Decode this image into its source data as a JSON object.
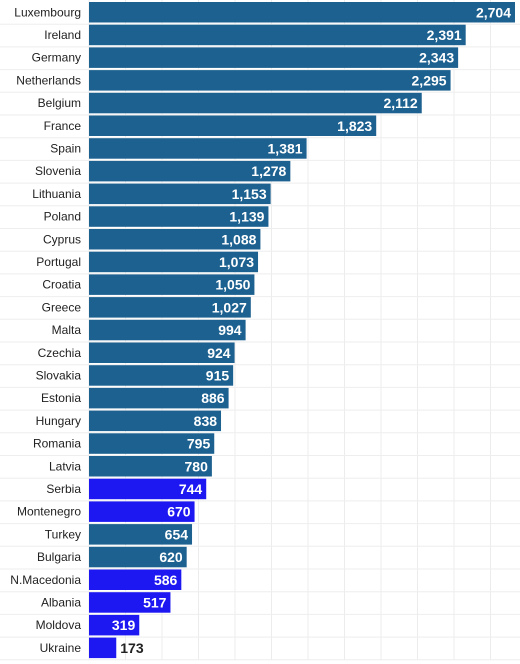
{
  "chart_data": {
    "type": "bar",
    "orientation": "horizontal",
    "categories": [
      "Luxembourg",
      "Ireland",
      "Germany",
      "Netherlands",
      "Belgium",
      "France",
      "Spain",
      "Slovenia",
      "Lithuania",
      "Poland",
      "Cyprus",
      "Portugal",
      "Croatia",
      "Greece",
      "Malta",
      "Czechia",
      "Slovakia",
      "Estonia",
      "Hungary",
      "Romania",
      "Latvia",
      "Serbia",
      "Montenegro",
      "Turkey",
      "Bulgaria",
      "N.Macedonia",
      "Albania",
      "Moldova",
      "Ukraine"
    ],
    "values": [
      2704,
      2391,
      2343,
      2295,
      2112,
      1823,
      1381,
      1278,
      1153,
      1139,
      1088,
      1073,
      1050,
      1027,
      994,
      924,
      915,
      886,
      838,
      795,
      780,
      744,
      670,
      654,
      620,
      586,
      517,
      319,
      173
    ],
    "labels": [
      "2,704",
      "2,391",
      "2,343",
      "2,295",
      "2,112",
      "1,823",
      "1,381",
      "1,278",
      "1,153",
      "1,139",
      "1,088",
      "1,073",
      "1,050",
      "1,027",
      "994",
      "924",
      "915",
      "886",
      "838",
      "795",
      "780",
      "744",
      "670",
      "654",
      "620",
      "586",
      "517",
      "319",
      "173"
    ],
    "bar_colors": [
      "#1d6190",
      "#1d6190",
      "#1d6190",
      "#1d6190",
      "#1d6190",
      "#1d6190",
      "#1d6190",
      "#1d6190",
      "#1d6190",
      "#1d6190",
      "#1d6190",
      "#1d6190",
      "#1d6190",
      "#1d6190",
      "#1d6190",
      "#1d6190",
      "#1d6190",
      "#1d6190",
      "#1d6190",
      "#1d6190",
      "#1d6190",
      "#1d17f2",
      "#1d17f2",
      "#1d6190",
      "#1d6190",
      "#1d17f2",
      "#1d17f2",
      "#1d17f2",
      "#1d17f2"
    ],
    "xlim": [
      0,
      2704
    ],
    "grid": true,
    "title": "",
    "xlabel": "",
    "ylabel": ""
  }
}
